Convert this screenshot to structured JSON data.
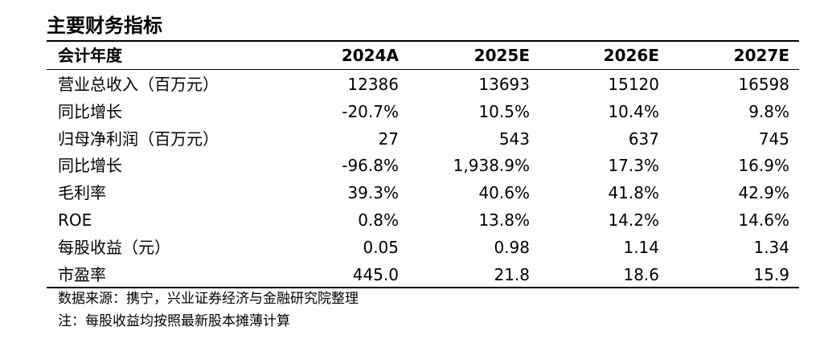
{
  "title": "主要财务指标",
  "header": {
    "label": "会计年度",
    "years": [
      "2024A",
      "2025E",
      "2026E",
      "2027E"
    ]
  },
  "rows": [
    {
      "label": "营业总收入（百万元）",
      "values": [
        "12386",
        "13693",
        "15120",
        "16598"
      ]
    },
    {
      "label": "同比增长",
      "values": [
        "-20.7%",
        "10.5%",
        "10.4%",
        "9.8%"
      ]
    },
    {
      "label": "归母净利润（百万元）",
      "values": [
        "27",
        "543",
        "637",
        "745"
      ]
    },
    {
      "label": "同比增长",
      "values": [
        "-96.8%",
        "1,938.9%",
        "17.3%",
        "16.9%"
      ]
    },
    {
      "label": "毛利率",
      "values": [
        "39.3%",
        "40.6%",
        "41.8%",
        "42.9%"
      ]
    },
    {
      "label": "ROE",
      "values": [
        "0.8%",
        "13.8%",
        "14.2%",
        "14.6%"
      ]
    },
    {
      "label": "每股收益（元）",
      "values": [
        "0.05",
        "0.98",
        "1.14",
        "1.34"
      ]
    },
    {
      "label": "市盈率",
      "values": [
        "445.0",
        "21.8",
        "18.6",
        "15.9"
      ]
    }
  ],
  "notes": {
    "source": "数据来源：携宁，兴业证券经济与金融研究院整理",
    "eps": "注：每股收益均按照最新股本摊薄计算"
  }
}
